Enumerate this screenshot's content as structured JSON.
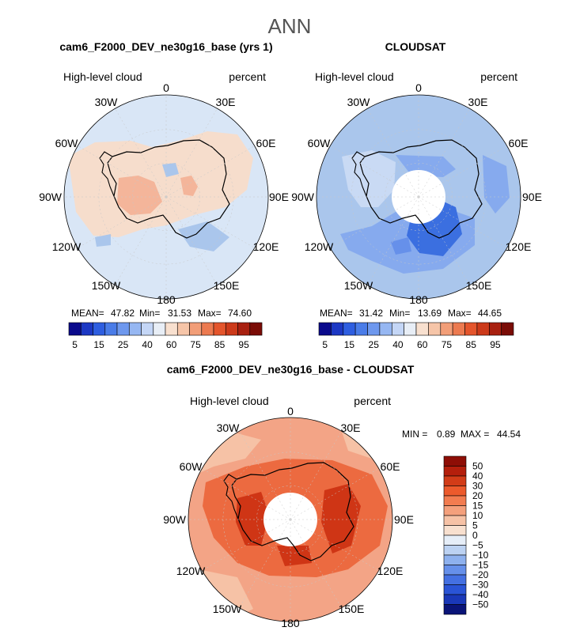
{
  "figure": {
    "title": "ANN"
  },
  "colors": {
    "ocean_light": "#d9e6f6",
    "ocean_mid": "#aac6ec",
    "ocean_blue": "#86aaee",
    "warm_light": "#f6ddcc",
    "warm_mid": "#f4b59a",
    "diff_base": "#f3a486",
    "diff_strong": "#ec6a40",
    "diff_darkest": "#cf3515",
    "blue_dark": "#3b6fe0",
    "land_line": "#000000",
    "grid": "#c8c8c8"
  },
  "chart_data": [
    {
      "id": "model",
      "type": "polar-map",
      "title": "cam6_F2000_DEV_ne30g16_base (yrs 1)",
      "left_label": "High-level cloud",
      "right_label": "percent",
      "longitude_labels": [
        "0",
        "30E",
        "60E",
        "90E",
        "120E",
        "150E",
        "180",
        "150W",
        "120W",
        "90W",
        "60W",
        "30W"
      ],
      "stats": {
        "mean_label": "MEAN=",
        "mean": "47.82",
        "min_label": "Min=",
        "min": "31.53",
        "max_label": "Max=",
        "max": "74.60"
      },
      "colorbar": {
        "orientation": "horizontal",
        "colors": [
          "#0a0a8c",
          "#1c38c4",
          "#2e5ee0",
          "#4a7ce8",
          "#6e98ee",
          "#96b7f2",
          "#c4d6f6",
          "#e8eef6",
          "#f8e0cf",
          "#f6c5a8",
          "#f29e78",
          "#ec7a50",
          "#e4552c",
          "#cc3a1a",
          "#a82010",
          "#7a0c06"
        ],
        "tick_labels": [
          "5",
          "15",
          "25",
          "40",
          "60",
          "75",
          "85",
          "95"
        ]
      }
    },
    {
      "id": "obs",
      "type": "polar-map",
      "title": "CLOUDSAT",
      "left_label": "High-level cloud",
      "right_label": "percent",
      "longitude_labels": [
        "0",
        "30E",
        "60E",
        "90E",
        "120E",
        "150E",
        "180",
        "150W",
        "120W",
        "90W",
        "60W",
        "30W"
      ],
      "stats": {
        "mean_label": "MEAN=",
        "mean": "31.42",
        "min_label": "Min=",
        "min": "13.69",
        "max_label": "Max=",
        "max": "44.65"
      },
      "colorbar": {
        "orientation": "horizontal",
        "colors": [
          "#0a0a8c",
          "#1c38c4",
          "#2e5ee0",
          "#4a7ce8",
          "#6e98ee",
          "#96b7f2",
          "#c4d6f6",
          "#e8eef6",
          "#f8e0cf",
          "#f6c5a8",
          "#f29e78",
          "#ec7a50",
          "#e4552c",
          "#cc3a1a",
          "#a82010",
          "#7a0c06"
        ],
        "tick_labels": [
          "5",
          "15",
          "25",
          "40",
          "60",
          "75",
          "85",
          "95"
        ]
      }
    },
    {
      "id": "diff",
      "type": "polar-map",
      "title": "cam6_F2000_DEV_ne30g16_base - CLOUDSAT",
      "left_label": "High-level cloud",
      "right_label": "percent",
      "longitude_labels": [
        "0",
        "30E",
        "60E",
        "90E",
        "120E",
        "150E",
        "180",
        "150W",
        "120W",
        "90W",
        "60W",
        "30W"
      ],
      "stats": {
        "min_label": "MIN =",
        "min": "0.89",
        "max_label": "MAX =",
        "max": "44.54"
      },
      "colorbar": {
        "orientation": "vertical",
        "colors": [
          "#8e0e06",
          "#b41f0c",
          "#d23c18",
          "#ec5a2c",
          "#f27c50",
          "#f4a07c",
          "#f6c2a6",
          "#f8e0cf",
          "#e6eef8",
          "#bcd2f2",
          "#8eb1ee",
          "#6690ea",
          "#4470e2",
          "#2a54d6",
          "#1a38b8",
          "#0a1478"
        ],
        "tick_labels": [
          "50",
          "40",
          "30",
          "20",
          "15",
          "10",
          "5",
          "0",
          "−5",
          "−10",
          "−15",
          "−20",
          "−30",
          "−40",
          "−50"
        ]
      }
    }
  ]
}
